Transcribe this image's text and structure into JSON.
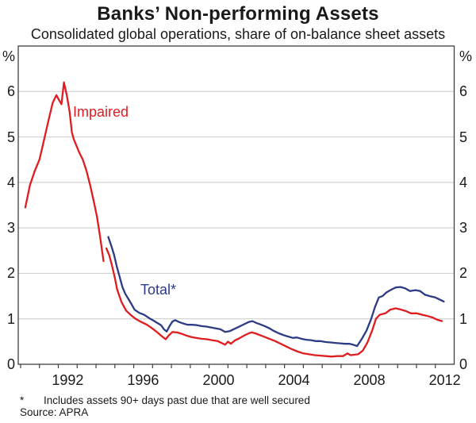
{
  "title": "Banks’ Non-performing Assets",
  "subtitle": "Consolidated global operations, share of on-balance sheet assets",
  "footnote": {
    "marker": "*",
    "text": "Includes assets 90+ days past due that are well secured"
  },
  "source": "Source: APRA",
  "chart_data": {
    "type": "line",
    "title": "Banks’ Non-performing Assets",
    "subtitle": "Consolidated global operations, share of on-balance sheet assets",
    "unit": "%",
    "xlabel": "",
    "ylabel": "%",
    "x_domain": [
      1989.875,
      2013.0
    ],
    "ylim": [
      0,
      7
    ],
    "y_tick_labels": [
      0,
      1,
      2,
      3,
      4,
      5,
      6
    ],
    "y_gridlines": [
      1,
      2,
      3,
      4,
      5,
      6
    ],
    "x_minor_ticks": {
      "start": 1990,
      "end": 2012,
      "step": 1
    },
    "x_year_labels": [
      1992,
      1996,
      2000,
      2004,
      2008,
      2012
    ],
    "grid_on": true,
    "legend_position": "inline-labels",
    "axis_color": "#404040",
    "grid_color": "#c9c9c9",
    "series": [
      {
        "name": "Impaired",
        "color": "#df1c20",
        "note": "break in series mid-1994",
        "segments": [
          [
            [
              1990.25,
              3.45
            ],
            [
              1990.5,
              3.95
            ],
            [
              1990.75,
              4.25
            ],
            [
              1991.0,
              4.5
            ],
            [
              1991.25,
              4.95
            ],
            [
              1991.5,
              5.4
            ],
            [
              1991.7,
              5.75
            ],
            [
              1991.9,
              5.92
            ],
            [
              1992.05,
              5.8
            ],
            [
              1992.17,
              5.72
            ],
            [
              1992.3,
              6.2
            ],
            [
              1992.45,
              5.92
            ],
            [
              1992.6,
              5.55
            ],
            [
              1992.72,
              5.1
            ],
            [
              1992.82,
              4.95
            ],
            [
              1992.95,
              4.82
            ],
            [
              1993.1,
              4.67
            ],
            [
              1993.3,
              4.5
            ],
            [
              1993.5,
              4.25
            ],
            [
              1993.7,
              3.92
            ],
            [
              1993.9,
              3.55
            ],
            [
              1994.05,
              3.25
            ],
            [
              1994.22,
              2.8
            ],
            [
              1994.4,
              2.27
            ]
          ],
          [
            [
              1994.55,
              2.55
            ],
            [
              1994.7,
              2.4
            ],
            [
              1994.85,
              2.17
            ],
            [
              1995.0,
              1.9
            ],
            [
              1995.12,
              1.65
            ],
            [
              1995.35,
              1.37
            ],
            [
              1995.6,
              1.18
            ],
            [
              1995.85,
              1.08
            ],
            [
              1996.1,
              1.0
            ],
            [
              1996.4,
              0.93
            ],
            [
              1996.7,
              0.87
            ],
            [
              1996.95,
              0.8
            ],
            [
              1997.2,
              0.72
            ],
            [
              1997.45,
              0.63
            ],
            [
              1997.7,
              0.55
            ],
            [
              1997.85,
              0.63
            ],
            [
              1998.05,
              0.71
            ],
            [
              1998.3,
              0.7
            ],
            [
              1998.55,
              0.67
            ],
            [
              1998.8,
              0.63
            ],
            [
              1999.05,
              0.6
            ],
            [
              1999.3,
              0.58
            ],
            [
              1999.6,
              0.56
            ],
            [
              1999.9,
              0.55
            ],
            [
              2000.15,
              0.53
            ],
            [
              2000.45,
              0.51
            ],
            [
              2000.7,
              0.46
            ],
            [
              2000.85,
              0.43
            ],
            [
              2001.0,
              0.5
            ],
            [
              2001.15,
              0.45
            ],
            [
              2001.35,
              0.52
            ],
            [
              2001.6,
              0.57
            ],
            [
              2001.85,
              0.63
            ],
            [
              2002.1,
              0.68
            ],
            [
              2002.25,
              0.7
            ],
            [
              2002.45,
              0.68
            ],
            [
              2002.7,
              0.64
            ],
            [
              2002.95,
              0.6
            ],
            [
              2003.2,
              0.56
            ],
            [
              2003.5,
              0.51
            ],
            [
              2003.8,
              0.45
            ],
            [
              2004.1,
              0.39
            ],
            [
              2004.4,
              0.33
            ],
            [
              2004.7,
              0.28
            ],
            [
              2005.0,
              0.24
            ],
            [
              2005.3,
              0.22
            ],
            [
              2005.6,
              0.2
            ],
            [
              2005.9,
              0.19
            ],
            [
              2006.2,
              0.18
            ],
            [
              2006.5,
              0.17
            ],
            [
              2006.8,
              0.18
            ],
            [
              2007.1,
              0.18
            ],
            [
              2007.35,
              0.24
            ],
            [
              2007.5,
              0.2
            ],
            [
              2007.7,
              0.21
            ],
            [
              2007.9,
              0.22
            ],
            [
              2008.15,
              0.3
            ],
            [
              2008.4,
              0.48
            ],
            [
              2008.65,
              0.74
            ],
            [
              2008.85,
              1.0
            ],
            [
              2009.05,
              1.09
            ],
            [
              2009.35,
              1.12
            ],
            [
              2009.6,
              1.2
            ],
            [
              2009.9,
              1.23
            ],
            [
              2010.2,
              1.2
            ],
            [
              2010.45,
              1.17
            ],
            [
              2010.7,
              1.12
            ],
            [
              2011.0,
              1.12
            ],
            [
              2011.3,
              1.09
            ],
            [
              2011.6,
              1.06
            ],
            [
              2011.85,
              1.03
            ],
            [
              2012.1,
              0.98
            ],
            [
              2012.35,
              0.95
            ]
          ]
        ]
      },
      {
        "name": "Total*",
        "color": "#2d3a85",
        "note": "series begins mid-1994",
        "segments": [
          [
            [
              1994.65,
              2.8
            ],
            [
              1994.8,
              2.62
            ],
            [
              1994.95,
              2.42
            ],
            [
              1995.1,
              2.15
            ],
            [
              1995.25,
              1.93
            ],
            [
              1995.4,
              1.7
            ],
            [
              1995.55,
              1.55
            ],
            [
              1995.8,
              1.38
            ],
            [
              1996.05,
              1.2
            ],
            [
              1996.3,
              1.13
            ],
            [
              1996.55,
              1.09
            ],
            [
              1996.8,
              1.02
            ],
            [
              1997.05,
              0.96
            ],
            [
              1997.25,
              0.91
            ],
            [
              1997.45,
              0.86
            ],
            [
              1997.6,
              0.77
            ],
            [
              1997.75,
              0.72
            ],
            [
              1997.9,
              0.84
            ],
            [
              1998.05,
              0.94
            ],
            [
              1998.2,
              0.97
            ],
            [
              1998.4,
              0.93
            ],
            [
              1998.6,
              0.9
            ],
            [
              1998.85,
              0.87
            ],
            [
              1999.1,
              0.87
            ],
            [
              1999.35,
              0.86
            ],
            [
              1999.6,
              0.84
            ],
            [
              1999.85,
              0.83
            ],
            [
              2000.1,
              0.81
            ],
            [
              2000.35,
              0.79
            ],
            [
              2000.6,
              0.77
            ],
            [
              2000.85,
              0.71
            ],
            [
              2001.1,
              0.73
            ],
            [
              2001.35,
              0.78
            ],
            [
              2001.6,
              0.83
            ],
            [
              2001.85,
              0.88
            ],
            [
              2002.1,
              0.93
            ],
            [
              2002.3,
              0.95
            ],
            [
              2002.5,
              0.91
            ],
            [
              2002.7,
              0.88
            ],
            [
              2002.95,
              0.84
            ],
            [
              2003.2,
              0.79
            ],
            [
              2003.45,
              0.73
            ],
            [
              2003.7,
              0.68
            ],
            [
              2003.95,
              0.64
            ],
            [
              2004.2,
              0.61
            ],
            [
              2004.45,
              0.58
            ],
            [
              2004.65,
              0.59
            ],
            [
              2004.9,
              0.56
            ],
            [
              2005.15,
              0.54
            ],
            [
              2005.4,
              0.53
            ],
            [
              2005.65,
              0.51
            ],
            [
              2005.9,
              0.51
            ],
            [
              2006.15,
              0.49
            ],
            [
              2006.45,
              0.48
            ],
            [
              2006.7,
              0.47
            ],
            [
              2006.95,
              0.46
            ],
            [
              2007.2,
              0.45
            ],
            [
              2007.45,
              0.45
            ],
            [
              2007.65,
              0.43
            ],
            [
              2007.85,
              0.4
            ],
            [
              2008.1,
              0.56
            ],
            [
              2008.35,
              0.74
            ],
            [
              2008.6,
              1.0
            ],
            [
              2008.8,
              1.26
            ],
            [
              2009.0,
              1.47
            ],
            [
              2009.2,
              1.5
            ],
            [
              2009.4,
              1.58
            ],
            [
              2009.65,
              1.64
            ],
            [
              2009.9,
              1.69
            ],
            [
              2010.15,
              1.7
            ],
            [
              2010.4,
              1.67
            ],
            [
              2010.65,
              1.61
            ],
            [
              2010.95,
              1.63
            ],
            [
              2011.2,
              1.61
            ],
            [
              2011.45,
              1.53
            ],
            [
              2011.7,
              1.5
            ],
            [
              2012.0,
              1.47
            ],
            [
              2012.25,
              1.42
            ],
            [
              2012.45,
              1.38
            ]
          ]
        ]
      }
    ]
  }
}
